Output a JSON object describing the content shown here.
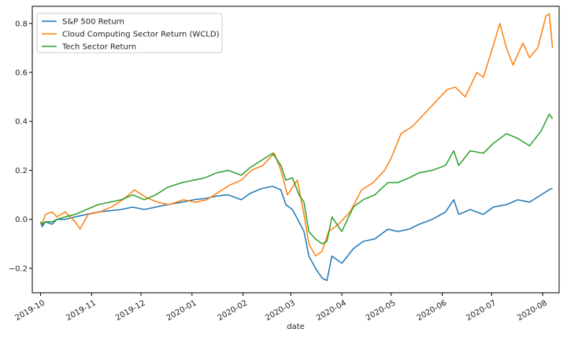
{
  "chart_data": {
    "type": "line",
    "xlabel": "date",
    "ylabel": "",
    "ylim": [
      -0.3,
      0.87
    ],
    "xlim": [
      "2019-09-26",
      "2020-08-11"
    ],
    "x_ticks": [
      "2019-10",
      "2019-11",
      "2019-12",
      "2020-01",
      "2020-02",
      "2020-03",
      "2020-04",
      "2020-05",
      "2020-06",
      "2020-07",
      "2020-08"
    ],
    "y_ticks": [
      -0.2,
      0.0,
      0.2,
      0.4,
      0.6,
      0.8
    ],
    "y_tick_labels": [
      "−0.2",
      "0.0",
      "0.2",
      "0.4",
      "0.6",
      "0.8"
    ],
    "grid": false,
    "legend_position": "top-left",
    "series": [
      {
        "name": "S&P 500 Return",
        "color": "#1f77b4",
        "points": [
          [
            "2019-10-01",
            -0.01
          ],
          [
            "2019-10-02",
            -0.03
          ],
          [
            "2019-10-04",
            -0.01
          ],
          [
            "2019-10-08",
            -0.02
          ],
          [
            "2019-10-11",
            0.0
          ],
          [
            "2019-10-16",
            0.0
          ],
          [
            "2019-10-22",
            0.01
          ],
          [
            "2019-10-29",
            0.02
          ],
          [
            "2019-11-05",
            0.03
          ],
          [
            "2019-11-12",
            0.035
          ],
          [
            "2019-11-19",
            0.04
          ],
          [
            "2019-11-26",
            0.05
          ],
          [
            "2019-12-03",
            0.04
          ],
          [
            "2019-12-10",
            0.05
          ],
          [
            "2019-12-17",
            0.06
          ],
          [
            "2019-12-26",
            0.07
          ],
          [
            "2020-01-02",
            0.08
          ],
          [
            "2020-01-09",
            0.085
          ],
          [
            "2020-01-16",
            0.095
          ],
          [
            "2020-01-23",
            0.1
          ],
          [
            "2020-01-31",
            0.08
          ],
          [
            "2020-02-05",
            0.105
          ],
          [
            "2020-02-12",
            0.125
          ],
          [
            "2020-02-19",
            0.135
          ],
          [
            "2020-02-24",
            0.12
          ],
          [
            "2020-02-27",
            0.06
          ],
          [
            "2020-03-02",
            0.04
          ],
          [
            "2020-03-06",
            -0.01
          ],
          [
            "2020-03-09",
            -0.05
          ],
          [
            "2020-03-12",
            -0.15
          ],
          [
            "2020-03-16",
            -0.2
          ],
          [
            "2020-03-20",
            -0.24
          ],
          [
            "2020-03-23",
            -0.25
          ],
          [
            "2020-03-26",
            -0.15
          ],
          [
            "2020-04-01",
            -0.18
          ],
          [
            "2020-04-08",
            -0.12
          ],
          [
            "2020-04-14",
            -0.09
          ],
          [
            "2020-04-21",
            -0.08
          ],
          [
            "2020-04-29",
            -0.04
          ],
          [
            "2020-05-05",
            -0.05
          ],
          [
            "2020-05-12",
            -0.04
          ],
          [
            "2020-05-18",
            -0.02
          ],
          [
            "2020-05-26",
            0.0
          ],
          [
            "2020-06-03",
            0.03
          ],
          [
            "2020-06-08",
            0.08
          ],
          [
            "2020-06-11",
            0.02
          ],
          [
            "2020-06-18",
            0.04
          ],
          [
            "2020-06-26",
            0.02
          ],
          [
            "2020-07-02",
            0.05
          ],
          [
            "2020-07-10",
            0.06
          ],
          [
            "2020-07-17",
            0.08
          ],
          [
            "2020-07-24",
            0.07
          ],
          [
            "2020-07-31",
            0.1
          ],
          [
            "2020-08-06",
            0.125
          ],
          [
            "2020-08-07",
            0.125
          ]
        ]
      },
      {
        "name": "Cloud Computing Sector Return (WCLD)",
        "color": "#ff7f0e",
        "points": [
          [
            "2019-10-01",
            -0.01
          ],
          [
            "2019-10-02",
            -0.02
          ],
          [
            "2019-10-04",
            0.02
          ],
          [
            "2019-10-08",
            0.03
          ],
          [
            "2019-10-11",
            0.01
          ],
          [
            "2019-10-16",
            0.03
          ],
          [
            "2019-10-22",
            -0.01
          ],
          [
            "2019-10-25",
            -0.04
          ],
          [
            "2019-10-30",
            0.02
          ],
          [
            "2019-11-06",
            0.03
          ],
          [
            "2019-11-13",
            0.05
          ],
          [
            "2019-11-20",
            0.08
          ],
          [
            "2019-11-27",
            0.12
          ],
          [
            "2019-12-04",
            0.09
          ],
          [
            "2019-12-11",
            0.07
          ],
          [
            "2019-12-18",
            0.06
          ],
          [
            "2019-12-27",
            0.08
          ],
          [
            "2020-01-03",
            0.07
          ],
          [
            "2020-01-10",
            0.08
          ],
          [
            "2020-01-17",
            0.11
          ],
          [
            "2020-01-24",
            0.14
          ],
          [
            "2020-01-31",
            0.16
          ],
          [
            "2020-02-06",
            0.2
          ],
          [
            "2020-02-13",
            0.22
          ],
          [
            "2020-02-20",
            0.27
          ],
          [
            "2020-02-24",
            0.2
          ],
          [
            "2020-02-28",
            0.1
          ],
          [
            "2020-03-05",
            0.16
          ],
          [
            "2020-03-09",
            0.02
          ],
          [
            "2020-03-12",
            -0.1
          ],
          [
            "2020-03-16",
            -0.15
          ],
          [
            "2020-03-20",
            -0.13
          ],
          [
            "2020-03-24",
            -0.05
          ],
          [
            "2020-03-30",
            -0.02
          ],
          [
            "2020-04-06",
            0.03
          ],
          [
            "2020-04-13",
            0.12
          ],
          [
            "2020-04-20",
            0.15
          ],
          [
            "2020-04-27",
            0.2
          ],
          [
            "2020-05-01",
            0.25
          ],
          [
            "2020-05-07",
            0.35
          ],
          [
            "2020-05-14",
            0.38
          ],
          [
            "2020-05-21",
            0.43
          ],
          [
            "2020-05-28",
            0.48
          ],
          [
            "2020-06-04",
            0.53
          ],
          [
            "2020-06-09",
            0.54
          ],
          [
            "2020-06-15",
            0.5
          ],
          [
            "2020-06-22",
            0.6
          ],
          [
            "2020-06-26",
            0.58
          ],
          [
            "2020-07-02",
            0.71
          ],
          [
            "2020-07-06",
            0.8
          ],
          [
            "2020-07-10",
            0.7
          ],
          [
            "2020-07-14",
            0.63
          ],
          [
            "2020-07-20",
            0.72
          ],
          [
            "2020-07-24",
            0.66
          ],
          [
            "2020-07-29",
            0.7
          ],
          [
            "2020-08-03",
            0.83
          ],
          [
            "2020-08-05",
            0.84
          ],
          [
            "2020-08-07",
            0.7
          ]
        ]
      },
      {
        "name": "Tech Sector Return",
        "color": "#2ca02c",
        "points": [
          [
            "2019-10-01",
            -0.01
          ],
          [
            "2019-10-02",
            -0.02
          ],
          [
            "2019-10-04",
            -0.01
          ],
          [
            "2019-10-08",
            -0.01
          ],
          [
            "2019-10-11",
            0.0
          ],
          [
            "2019-10-16",
            0.01
          ],
          [
            "2019-10-22",
            0.02
          ],
          [
            "2019-10-29",
            0.04
          ],
          [
            "2019-11-05",
            0.06
          ],
          [
            "2019-11-12",
            0.07
          ],
          [
            "2019-11-19",
            0.08
          ],
          [
            "2019-11-26",
            0.1
          ],
          [
            "2019-12-03",
            0.08
          ],
          [
            "2019-12-10",
            0.1
          ],
          [
            "2019-12-17",
            0.13
          ],
          [
            "2019-12-26",
            0.15
          ],
          [
            "2020-01-02",
            0.16
          ],
          [
            "2020-01-09",
            0.17
          ],
          [
            "2020-01-16",
            0.19
          ],
          [
            "2020-01-23",
            0.2
          ],
          [
            "2020-01-31",
            0.18
          ],
          [
            "2020-02-05",
            0.21
          ],
          [
            "2020-02-12",
            0.24
          ],
          [
            "2020-02-19",
            0.27
          ],
          [
            "2020-02-24",
            0.22
          ],
          [
            "2020-02-27",
            0.16
          ],
          [
            "2020-03-02",
            0.17
          ],
          [
            "2020-03-06",
            0.1
          ],
          [
            "2020-03-09",
            0.07
          ],
          [
            "2020-03-12",
            -0.05
          ],
          [
            "2020-03-16",
            -0.08
          ],
          [
            "2020-03-20",
            -0.1
          ],
          [
            "2020-03-23",
            -0.09
          ],
          [
            "2020-03-26",
            0.01
          ],
          [
            "2020-04-01",
            -0.05
          ],
          [
            "2020-04-08",
            0.05
          ],
          [
            "2020-04-14",
            0.08
          ],
          [
            "2020-04-21",
            0.1
          ],
          [
            "2020-04-29",
            0.15
          ],
          [
            "2020-05-05",
            0.15
          ],
          [
            "2020-05-12",
            0.17
          ],
          [
            "2020-05-18",
            0.19
          ],
          [
            "2020-05-26",
            0.2
          ],
          [
            "2020-06-03",
            0.22
          ],
          [
            "2020-06-08",
            0.28
          ],
          [
            "2020-06-11",
            0.22
          ],
          [
            "2020-06-18",
            0.28
          ],
          [
            "2020-06-26",
            0.27
          ],
          [
            "2020-07-02",
            0.31
          ],
          [
            "2020-07-10",
            0.35
          ],
          [
            "2020-07-17",
            0.33
          ],
          [
            "2020-07-24",
            0.3
          ],
          [
            "2020-07-31",
            0.36
          ],
          [
            "2020-08-05",
            0.43
          ],
          [
            "2020-08-07",
            0.41
          ]
        ]
      }
    ]
  }
}
